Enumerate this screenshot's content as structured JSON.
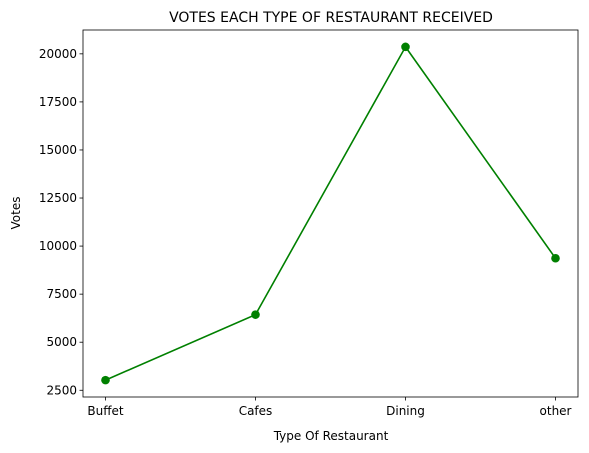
{
  "chart_data": {
    "type": "line",
    "title": "VOTES EACH TYPE OF RESTAURANT RECEIVED",
    "xlabel": "Type Of Restaurant",
    "ylabel": "Votes",
    "categories": [
      "Buffet",
      "Cafes",
      "Dining",
      "other"
    ],
    "values": [
      3028,
      6434,
      20363,
      9367
    ],
    "ylim": [
      2150,
      21240
    ],
    "yticks": [
      2500,
      5000,
      7500,
      10000,
      12500,
      15000,
      17500,
      20000
    ],
    "ytick_labels": [
      "2500",
      "5000",
      "7500",
      "10000",
      "12500",
      "15000",
      "17500",
      "20000"
    ],
    "grid": false,
    "color": "#008000",
    "marker": "circle"
  }
}
